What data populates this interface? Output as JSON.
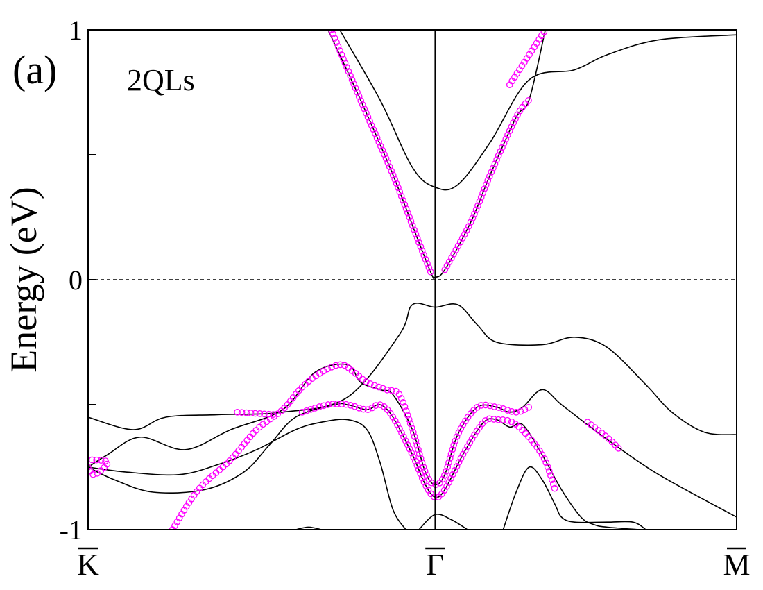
{
  "chart_data": {
    "type": "line",
    "panel_label": "(a)",
    "annotation": "2QLs",
    "ylabel": "Energy (eV)",
    "xlabel": "",
    "ylim": [
      -1,
      1
    ],
    "y_ticks": [
      {
        "value": 1,
        "label": "1"
      },
      {
        "value": 0.5,
        "label": ""
      },
      {
        "value": 0,
        "label": "0"
      },
      {
        "value": -0.5,
        "label": ""
      },
      {
        "value": -1,
        "label": "-1"
      }
    ],
    "xlim": [
      0,
      1
    ],
    "x_ticks": [
      {
        "value": 0,
        "label": "K",
        "overbar": true
      },
      {
        "value": 0.535,
        "label": "Γ",
        "overbar": true
      },
      {
        "value": 1,
        "label": "M",
        "overbar": true
      }
    ],
    "fermi_level": 0,
    "grid": false,
    "colors": {
      "band": "#000000",
      "projection": "#ff00ff",
      "fermi": "#000000"
    },
    "bands": [
      {
        "points": [
          [
            0.388,
            1.0
          ],
          [
            0.45,
            0.72
          ],
          [
            0.5,
            0.45
          ],
          [
            0.535,
            0.37
          ],
          [
            0.57,
            0.38
          ],
          [
            0.62,
            0.55
          ],
          [
            0.68,
            0.8
          ],
          [
            0.75,
            0.84
          ],
          [
            0.8,
            0.9
          ],
          [
            0.88,
            0.96
          ],
          [
            1.0,
            0.98
          ]
        ]
      },
      {
        "points": [
          [
            0.37,
            1.0
          ],
          [
            0.42,
            0.72
          ],
          [
            0.47,
            0.42
          ],
          [
            0.51,
            0.15
          ],
          [
            0.53,
            0.02
          ],
          [
            0.535,
            0.01
          ],
          [
            0.55,
            0.04
          ],
          [
            0.59,
            0.23
          ],
          [
            0.62,
            0.42
          ],
          [
            0.66,
            0.65
          ],
          [
            0.68,
            0.72
          ],
          [
            0.705,
            1.0
          ]
        ]
      },
      {
        "points": [
          [
            0.0,
            -0.55
          ],
          [
            0.07,
            -0.6
          ],
          [
            0.12,
            -0.55
          ],
          [
            0.2,
            -0.54
          ],
          [
            0.3,
            -0.53
          ],
          [
            0.4,
            -0.47
          ],
          [
            0.48,
            -0.22
          ],
          [
            0.5,
            -0.1
          ],
          [
            0.535,
            -0.11
          ],
          [
            0.57,
            -0.1
          ],
          [
            0.6,
            -0.18
          ],
          [
            0.63,
            -0.25
          ],
          [
            0.7,
            -0.26
          ],
          [
            0.75,
            -0.23
          ],
          [
            0.8,
            -0.27
          ],
          [
            0.86,
            -0.42
          ],
          [
            0.9,
            -0.53
          ],
          [
            0.95,
            -0.61
          ],
          [
            1.0,
            -0.62
          ]
        ]
      },
      {
        "points": [
          [
            0.0,
            -0.75
          ],
          [
            0.03,
            -0.7
          ],
          [
            0.08,
            -0.63
          ],
          [
            0.15,
            -0.68
          ],
          [
            0.22,
            -0.6
          ],
          [
            0.3,
            -0.52
          ],
          [
            0.35,
            -0.37
          ],
          [
            0.4,
            -0.34
          ],
          [
            0.42,
            -0.41
          ],
          [
            0.45,
            -0.44
          ],
          [
            0.47,
            -0.46
          ],
          [
            0.5,
            -0.6
          ],
          [
            0.52,
            -0.77
          ],
          [
            0.535,
            -0.82
          ],
          [
            0.55,
            -0.78
          ],
          [
            0.57,
            -0.62
          ],
          [
            0.6,
            -0.51
          ],
          [
            0.63,
            -0.51
          ],
          [
            0.65,
            -0.53
          ],
          [
            0.67,
            -0.51
          ],
          [
            0.7,
            -0.44
          ],
          [
            0.73,
            -0.5
          ],
          [
            0.78,
            -0.6
          ],
          [
            0.85,
            -0.73
          ],
          [
            0.9,
            -0.81
          ],
          [
            1.0,
            -0.95
          ]
        ]
      },
      {
        "points": [
          [
            0.0,
            -0.75
          ],
          [
            0.04,
            -0.8
          ],
          [
            0.1,
            -0.85
          ],
          [
            0.18,
            -0.84
          ],
          [
            0.24,
            -0.77
          ],
          [
            0.28,
            -0.66
          ],
          [
            0.32,
            -0.55
          ],
          [
            0.38,
            -0.5
          ],
          [
            0.4,
            -0.5
          ],
          [
            0.43,
            -0.52
          ],
          [
            0.45,
            -0.5
          ],
          [
            0.47,
            -0.55
          ],
          [
            0.5,
            -0.7
          ],
          [
            0.52,
            -0.82
          ],
          [
            0.535,
            -0.87
          ],
          [
            0.55,
            -0.84
          ],
          [
            0.58,
            -0.69
          ],
          [
            0.61,
            -0.57
          ],
          [
            0.63,
            -0.56
          ],
          [
            0.65,
            -0.59
          ],
          [
            0.67,
            -0.58
          ],
          [
            0.7,
            -0.7
          ],
          [
            0.73,
            -0.84
          ],
          [
            0.76,
            -0.95
          ],
          [
            0.78,
            -0.98
          ],
          [
            0.8,
            -0.99
          ],
          [
            0.85,
            -1.0
          ]
        ]
      },
      {
        "points": [
          [
            0.0,
            -0.75
          ],
          [
            0.06,
            -0.77
          ],
          [
            0.14,
            -0.78
          ],
          [
            0.2,
            -0.74
          ],
          [
            0.26,
            -0.68
          ],
          [
            0.32,
            -0.6
          ],
          [
            0.36,
            -0.57
          ],
          [
            0.4,
            -0.56
          ],
          [
            0.43,
            -0.6
          ],
          [
            0.45,
            -0.73
          ],
          [
            0.47,
            -0.92
          ],
          [
            0.49,
            -1.0
          ]
        ]
      },
      {
        "points": [
          [
            0.51,
            -1.0
          ],
          [
            0.535,
            -0.94
          ],
          [
            0.56,
            -0.96
          ],
          [
            0.585,
            -1.0
          ]
        ]
      },
      {
        "points": [
          [
            0.64,
            -1.0
          ],
          [
            0.66,
            -0.85
          ],
          [
            0.68,
            -0.75
          ],
          [
            0.7,
            -0.8
          ],
          [
            0.72,
            -0.9
          ],
          [
            0.73,
            -0.95
          ],
          [
            0.75,
            -0.97
          ],
          [
            0.8,
            -0.97
          ],
          [
            0.84,
            -0.97
          ],
          [
            0.86,
            -1.0
          ]
        ]
      },
      {
        "points": [
          [
            0.32,
            -1.0
          ],
          [
            0.34,
            -0.99
          ],
          [
            0.36,
            -1.0
          ]
        ]
      }
    ],
    "projection_markers": [
      {
        "points": [
          [
            0.375,
            1.0
          ],
          [
            0.42,
            0.72
          ],
          [
            0.47,
            0.42
          ],
          [
            0.51,
            0.15
          ],
          [
            0.53,
            0.02
          ]
        ]
      },
      {
        "points": [
          [
            0.55,
            0.04
          ],
          [
            0.59,
            0.23
          ],
          [
            0.62,
            0.42
          ],
          [
            0.66,
            0.65
          ],
          [
            0.68,
            0.72
          ]
        ]
      },
      {
        "points": [
          [
            0.65,
            0.78
          ],
          [
            0.705,
            1.0
          ]
        ]
      },
      {
        "points": [
          [
            0.0,
            -0.75
          ],
          [
            0.01,
            -0.78
          ],
          [
            0.03,
            -0.73
          ],
          [
            0.0,
            -0.72
          ]
        ]
      },
      {
        "points": [
          [
            0.13,
            -1.0
          ],
          [
            0.17,
            -0.84
          ],
          [
            0.22,
            -0.72
          ],
          [
            0.26,
            -0.6
          ],
          [
            0.3,
            -0.52
          ],
          [
            0.33,
            -0.43
          ],
          [
            0.36,
            -0.37
          ],
          [
            0.39,
            -0.34
          ],
          [
            0.41,
            -0.37
          ],
          [
            0.43,
            -0.41
          ],
          [
            0.46,
            -0.44
          ],
          [
            0.48,
            -0.46
          ],
          [
            0.5,
            -0.6
          ],
          [
            0.52,
            -0.77
          ],
          [
            0.535,
            -0.82
          ],
          [
            0.55,
            -0.78
          ],
          [
            0.57,
            -0.62
          ],
          [
            0.6,
            -0.51
          ],
          [
            0.63,
            -0.51
          ],
          [
            0.66,
            -0.53
          ],
          [
            0.68,
            -0.51
          ]
        ]
      },
      {
        "points": [
          [
            0.23,
            -0.53
          ],
          [
            0.29,
            -0.54
          ]
        ]
      },
      {
        "points": [
          [
            0.33,
            -0.53
          ],
          [
            0.37,
            -0.5
          ],
          [
            0.4,
            -0.5
          ],
          [
            0.43,
            -0.52
          ],
          [
            0.45,
            -0.5
          ],
          [
            0.47,
            -0.55
          ],
          [
            0.5,
            -0.7
          ],
          [
            0.52,
            -0.82
          ],
          [
            0.535,
            -0.87
          ],
          [
            0.55,
            -0.84
          ],
          [
            0.58,
            -0.69
          ],
          [
            0.61,
            -0.57
          ],
          [
            0.63,
            -0.56
          ],
          [
            0.66,
            -0.58
          ],
          [
            0.7,
            -0.7
          ],
          [
            0.72,
            -0.84
          ]
        ]
      },
      {
        "points": [
          [
            0.77,
            -0.57
          ],
          [
            0.8,
            -0.63
          ],
          [
            0.82,
            -0.68
          ]
        ]
      }
    ]
  }
}
